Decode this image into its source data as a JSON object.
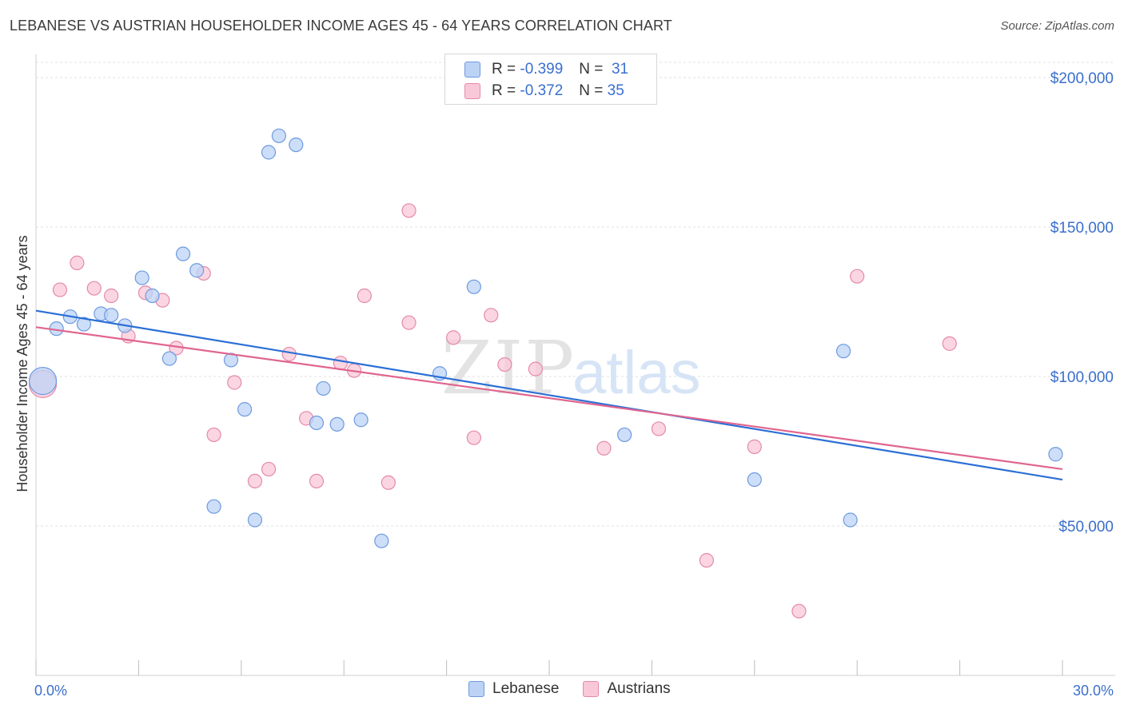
{
  "header": {
    "title": "LEBANESE VS AUSTRIAN HOUSEHOLDER INCOME AGES 45 - 64 YEARS CORRELATION CHART",
    "source": "Source: ZipAtlas.com"
  },
  "watermark": {
    "zip": "ZIP",
    "atlas": "atlas"
  },
  "legend_stats": {
    "lebanese": {
      "r_label": "R =",
      "r_value": "-0.399",
      "n_label": "N =",
      "n_value": "31"
    },
    "austrians": {
      "r_label": "R =",
      "r_value": "-0.372",
      "n_label": "N =",
      "n_value": "35"
    }
  },
  "chart_data": {
    "type": "scatter",
    "title": "LEBANESE VS AUSTRIAN HOUSEHOLDER INCOME AGES 45 - 64 YEARS CORRELATION CHART",
    "xlabel": "",
    "ylabel": "Householder Income Ages 45 - 64 years",
    "xlim": [
      0,
      30
    ],
    "ylim": [
      0,
      205000
    ],
    "x_tick_labels": [
      "0.0%",
      "30.0%"
    ],
    "y_ticks": [
      50000,
      100000,
      150000,
      200000
    ],
    "y_tick_labels": [
      "$50,000",
      "$100,000",
      "$150,000",
      "$200,000"
    ],
    "grid": true,
    "legend_position": "bottom-center",
    "colors": {
      "lebanese": "#6e9ae0",
      "lebanese_fill": "#bcd3f5",
      "lebanese_line": "#2b6fd6",
      "austrians": "#e48aa8",
      "austrians_fill": "#f9c8d8",
      "austrians_line": "#e0658f"
    },
    "series": [
      {
        "name": "Lebanese",
        "points": [
          [
            0.2,
            98500
          ],
          [
            0.6,
            116000
          ],
          [
            1.0,
            120000
          ],
          [
            1.4,
            117500
          ],
          [
            1.9,
            121000
          ],
          [
            2.2,
            120500
          ],
          [
            2.6,
            117000
          ],
          [
            3.1,
            133000
          ],
          [
            3.4,
            127000
          ],
          [
            3.9,
            106000
          ],
          [
            4.3,
            141000
          ],
          [
            4.7,
            135500
          ],
          [
            5.2,
            56500
          ],
          [
            5.7,
            105500
          ],
          [
            6.1,
            89000
          ],
          [
            6.4,
            52000
          ],
          [
            6.8,
            175000
          ],
          [
            7.1,
            180500
          ],
          [
            7.6,
            177500
          ],
          [
            8.2,
            84500
          ],
          [
            8.4,
            96000
          ],
          [
            8.8,
            84000
          ],
          [
            9.5,
            85500
          ],
          [
            10.1,
            45000
          ],
          [
            11.8,
            101000
          ],
          [
            12.8,
            130000
          ],
          [
            17.2,
            80500
          ],
          [
            21.0,
            65500
          ],
          [
            23.6,
            108500
          ],
          [
            23.8,
            52000
          ],
          [
            29.8,
            74000
          ]
        ],
        "trend": {
          "x": [
            0,
            30
          ],
          "y": [
            122000,
            65500
          ]
        }
      },
      {
        "name": "Austrians",
        "points": [
          [
            0.2,
            97500
          ],
          [
            0.7,
            129000
          ],
          [
            1.2,
            138000
          ],
          [
            1.7,
            129500
          ],
          [
            2.2,
            127000
          ],
          [
            2.7,
            113500
          ],
          [
            3.2,
            128000
          ],
          [
            3.7,
            125500
          ],
          [
            4.1,
            109500
          ],
          [
            4.9,
            134500
          ],
          [
            5.2,
            80500
          ],
          [
            5.8,
            98000
          ],
          [
            6.4,
            65000
          ],
          [
            6.8,
            69000
          ],
          [
            7.4,
            107500
          ],
          [
            7.9,
            86000
          ],
          [
            8.2,
            65000
          ],
          [
            8.9,
            104500
          ],
          [
            9.3,
            102000
          ],
          [
            9.6,
            127000
          ],
          [
            10.3,
            64500
          ],
          [
            10.9,
            155500
          ],
          [
            10.9,
            118000
          ],
          [
            12.2,
            113000
          ],
          [
            12.8,
            79500
          ],
          [
            13.3,
            120500
          ],
          [
            13.7,
            104000
          ],
          [
            14.6,
            102500
          ],
          [
            16.6,
            76000
          ],
          [
            18.2,
            82500
          ],
          [
            19.6,
            38500
          ],
          [
            21.0,
            76500
          ],
          [
            22.3,
            21500
          ],
          [
            24.0,
            133500
          ],
          [
            26.7,
            111000
          ]
        ],
        "trend": {
          "x": [
            0,
            30
          ],
          "y": [
            116500,
            69000
          ]
        }
      }
    ]
  }
}
